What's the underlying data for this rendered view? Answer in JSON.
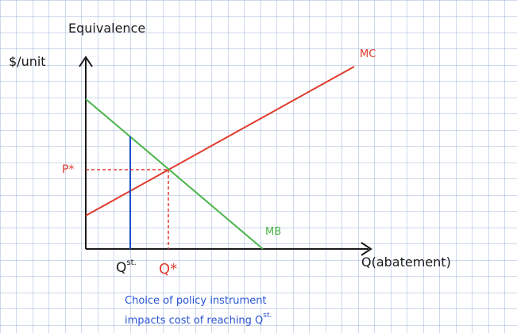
{
  "title": "Equivalence",
  "y_axis_label": "$/unit",
  "x_axis_label": "Q(abatement)",
  "curves": {
    "mc_label": "MC",
    "mb_label": "MB"
  },
  "equilibrium": {
    "price_label": "P*",
    "quantity_label": "Q*"
  },
  "standard": {
    "quantity_main": "Q",
    "quantity_sup": "st."
  },
  "note": {
    "line1": "Choice of policy instrument",
    "line2_main": "impacts cost of reaching Q",
    "line2_sup": "st."
  },
  "colors": {
    "grid": "#9fb3d9",
    "axis": "#1a1a1a",
    "mc": "#e03a2e",
    "mb": "#4ab548",
    "standard_line": "#1f4fc7",
    "equilibrium": "#e03a2e",
    "note_text": "#2a55d6"
  },
  "chart_data": {
    "type": "line",
    "series": [
      {
        "name": "MC",
        "x": [
          0,
          10
        ],
        "y": [
          0.9,
          6.7
        ]
      },
      {
        "name": "MB",
        "x": [
          0,
          6.6
        ],
        "y": [
          4.2,
          0
        ]
      }
    ],
    "annotations": [
      {
        "label": "P*",
        "kind": "equilibrium price"
      },
      {
        "label": "Q*",
        "kind": "equilibrium quantity"
      },
      {
        "label": "Qst.",
        "kind": "standard quantity"
      }
    ]
  }
}
